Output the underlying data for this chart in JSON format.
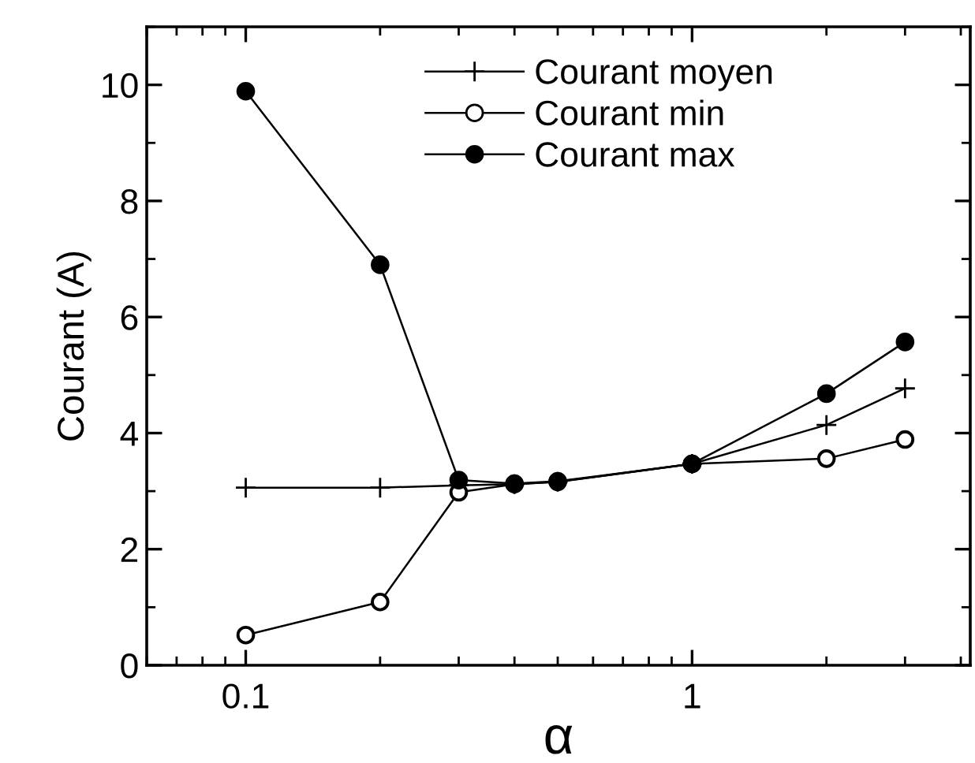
{
  "chart_data": {
    "type": "line",
    "xlabel": "α",
    "ylabel": "Courant (A)",
    "log": "x",
    "xlim": [
      0.06,
      4.2
    ],
    "ylim": [
      0,
      11
    ],
    "xticks": [
      0.1,
      1
    ],
    "yticks": [
      0,
      2,
      4,
      6,
      8,
      10
    ],
    "grid": false,
    "legend": "top",
    "x": [
      0.1,
      0.2,
      0.3,
      0.4,
      0.5,
      1,
      2,
      3
    ],
    "series": [
      {
        "name": "Courant moyen",
        "color": "#000000",
        "marker": "cross",
        "values": [
          3.06,
          3.06,
          3.1,
          3.12,
          3.16,
          3.47,
          4.14,
          4.77
        ]
      },
      {
        "name": "Courant min",
        "color": "#000000",
        "marker": "circle",
        "colors": [
          "#ffffff",
          "#ffffff",
          "#ffffff",
          "#ffffff",
          "#ffffff",
          "#ffffff",
          "#ffffff",
          "#ffffff"
        ],
        "values": [
          0.52,
          1.09,
          2.98,
          3.12,
          3.16,
          3.47,
          3.56,
          3.89
        ]
      },
      {
        "name": "Courant max",
        "color": "#000000",
        "marker": "circle",
        "values": [
          9.89,
          6.9,
          3.19,
          3.13,
          3.17,
          3.47,
          4.68,
          5.57
        ]
      }
    ]
  }
}
